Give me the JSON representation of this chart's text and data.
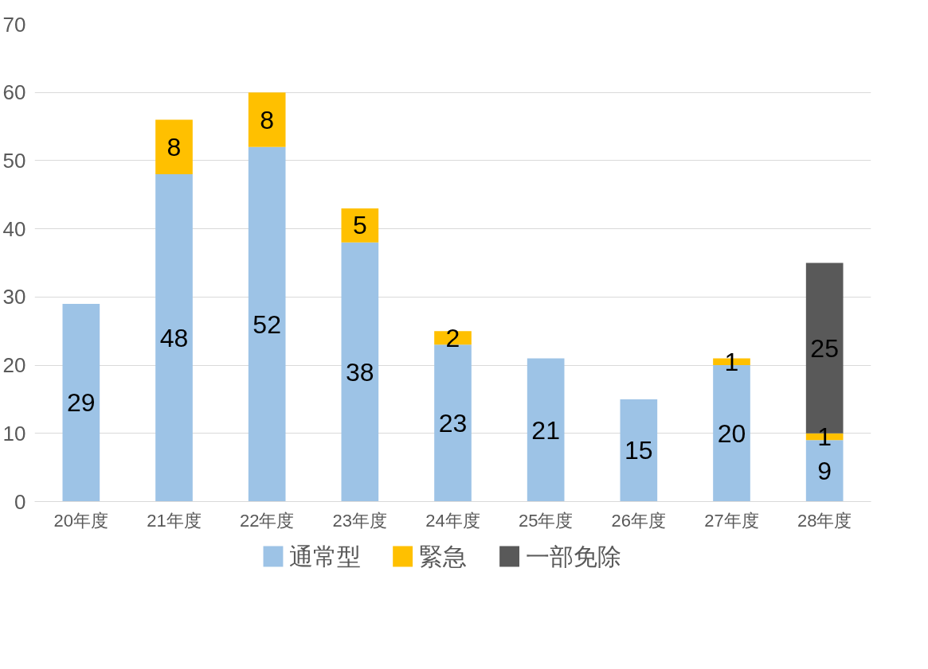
{
  "chart_data": {
    "type": "bar",
    "stacked": true,
    "categories": [
      "20年度",
      "21年度",
      "22年度",
      "23年度",
      "24年度",
      "25年度",
      "26年度",
      "27年度",
      "28年度"
    ],
    "series": [
      {
        "name": "通常型",
        "color": "#9dc3e6",
        "values": [
          29,
          48,
          52,
          38,
          23,
          21,
          15,
          20,
          9
        ]
      },
      {
        "name": "緊急",
        "color": "#ffc000",
        "values": [
          null,
          8,
          8,
          5,
          2,
          null,
          null,
          1,
          1
        ]
      },
      {
        "name": "一部免除",
        "color": "#595959",
        "values": [
          null,
          null,
          null,
          null,
          null,
          null,
          null,
          null,
          25
        ]
      }
    ],
    "ylim": [
      0,
      70
    ],
    "yticks": [
      0,
      10,
      20,
      30,
      40,
      50,
      60,
      70
    ],
    "grid": "y",
    "legend": "bottom",
    "data_labels": true
  }
}
